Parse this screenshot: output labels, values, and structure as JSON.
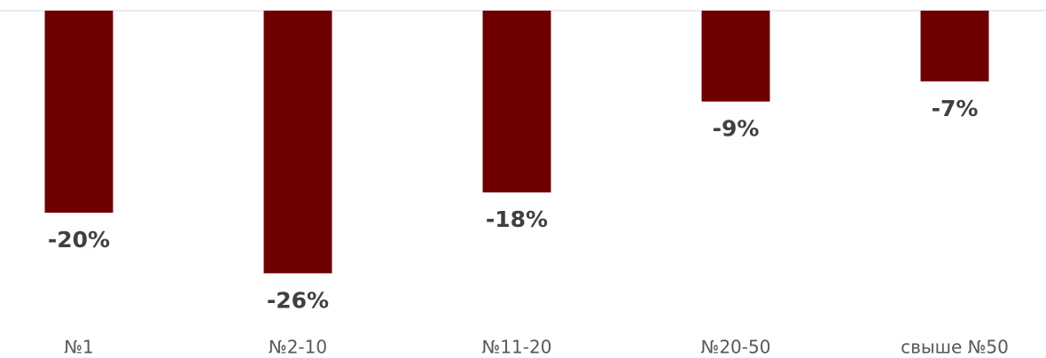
{
  "chart_data": {
    "type": "bar",
    "categories": [
      "№1",
      "№2-10",
      "№11-20",
      "№20-50",
      "свыше №50"
    ],
    "values": [
      -20,
      -26,
      -18,
      -9,
      -7
    ],
    "value_labels": [
      "-20%",
      "-26%",
      "-18%",
      "-9%",
      "-7%"
    ],
    "color": "#6e0000",
    "ylim": [
      -30,
      0
    ]
  }
}
